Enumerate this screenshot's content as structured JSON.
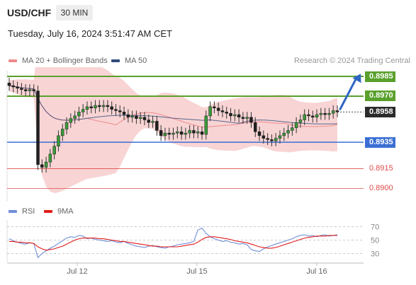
{
  "header": {
    "symbol": "USD/CHF",
    "timeframe": "30 MIN",
    "datetime": "Tuesday, July 16, 2024 3:51:47 AM CET"
  },
  "legend": {
    "ma20_label": "MA 20 + Bollinger Bands",
    "ma50_label": "MA 50",
    "credit": "Research © 2024 Trading Central",
    "rsi_label": "RSI",
    "ma9_label": "9MA"
  },
  "colors": {
    "resistance": "#5aa02c",
    "support": "#3b6fd4",
    "target": "#e14b4b",
    "current": "#2b2b2b",
    "bollinger": "#f6c5c5",
    "ma20": "#f08a8a",
    "ma50": "#2f4b7c",
    "rsi": "#6f8fd8",
    "ma9": "#e11b1b",
    "arrow": "#2e66c2"
  },
  "chart_data": [
    {
      "type": "candlestick",
      "title": "USD/CHF 30 MIN",
      "x_ticks": [
        "Jul 12",
        "Jul 15",
        "Jul 16"
      ],
      "ylim": [
        0.889,
        0.8992
      ],
      "levels": [
        {
          "value": 0.8985,
          "label": "0.8985",
          "kind": "resistance"
        },
        {
          "value": 0.897,
          "label": "0.8970",
          "kind": "resistance"
        },
        {
          "value": 0.8958,
          "label": "0.8958",
          "kind": "current"
        },
        {
          "value": 0.8935,
          "label": "0.8935",
          "kind": "support"
        },
        {
          "value": 0.8915,
          "label": "0.8915",
          "kind": "target"
        },
        {
          "value": 0.89,
          "label": "0.8900",
          "kind": "target"
        }
      ],
      "series": [
        {
          "name": "MA 20 + Bollinger Bands"
        },
        {
          "name": "MA 50"
        }
      ],
      "close": [
        0.8978,
        0.8977,
        0.8976,
        0.8975,
        0.8974,
        0.8975,
        0.8974,
        0.8918,
        0.8916,
        0.892,
        0.8926,
        0.8932,
        0.894,
        0.8945,
        0.895,
        0.8953,
        0.8955,
        0.8958,
        0.896,
        0.8962,
        0.8961,
        0.8963,
        0.8962,
        0.8963,
        0.8962,
        0.896,
        0.8959,
        0.8958,
        0.8956,
        0.8954,
        0.8955,
        0.8953,
        0.8954,
        0.8952,
        0.895,
        0.8951,
        0.8944,
        0.894,
        0.8942,
        0.8941,
        0.8942,
        0.8943,
        0.8941,
        0.8942,
        0.8944,
        0.8942,
        0.8943,
        0.8941,
        0.8955,
        0.8962,
        0.8961,
        0.8959,
        0.8958,
        0.8957,
        0.8955,
        0.8956,
        0.8954,
        0.8953,
        0.8954,
        0.895,
        0.8943,
        0.894,
        0.8938,
        0.8937,
        0.8936,
        0.8938,
        0.894,
        0.8942,
        0.8944,
        0.8946,
        0.895,
        0.8952,
        0.8956,
        0.8955,
        0.8954,
        0.8956,
        0.8957,
        0.8956,
        0.8957,
        0.8959,
        0.8958
      ]
    },
    {
      "type": "line",
      "title": "RSI",
      "x_ticks": [
        "Jul 12",
        "Jul 15",
        "Jul 16"
      ],
      "yticks": [
        30,
        50,
        70
      ],
      "ylim": [
        20,
        80
      ],
      "series": [
        {
          "name": "RSI",
          "values": [
            52,
            49,
            47,
            45,
            44,
            46,
            45,
            24,
            30,
            34,
            38,
            41,
            45,
            49,
            53,
            55,
            54,
            57,
            56,
            52,
            53,
            51,
            50,
            49,
            48,
            49,
            47,
            46,
            48,
            45,
            43,
            41,
            40,
            39,
            41,
            42,
            40,
            39,
            38,
            40,
            41,
            43,
            44,
            45,
            46,
            48,
            65,
            68,
            60,
            55,
            52,
            50,
            48,
            49,
            47,
            46,
            44,
            45,
            43,
            36,
            34,
            33,
            37,
            40,
            42,
            44,
            46,
            48,
            50,
            52,
            55,
            57,
            58,
            56,
            57,
            55,
            57,
            58,
            56,
            57,
            58
          ]
        },
        {
          "name": "9MA",
          "values": [
            48,
            48,
            47,
            47,
            46,
            46,
            45,
            40,
            37,
            35,
            36,
            37,
            39,
            41,
            44,
            47,
            50,
            52,
            53,
            53,
            53,
            53,
            52,
            52,
            51,
            50,
            49,
            48,
            48,
            47,
            46,
            45,
            44,
            43,
            42,
            41,
            41,
            40,
            40,
            40,
            40,
            40,
            41,
            42,
            43,
            44,
            47,
            51,
            54,
            55,
            55,
            54,
            53,
            52,
            51,
            49,
            48,
            47,
            46,
            44,
            42,
            40,
            39,
            38,
            38,
            39,
            41,
            43,
            45,
            47,
            49,
            51,
            53,
            54,
            55,
            56,
            56,
            56,
            57,
            57,
            57
          ]
        }
      ]
    }
  ]
}
